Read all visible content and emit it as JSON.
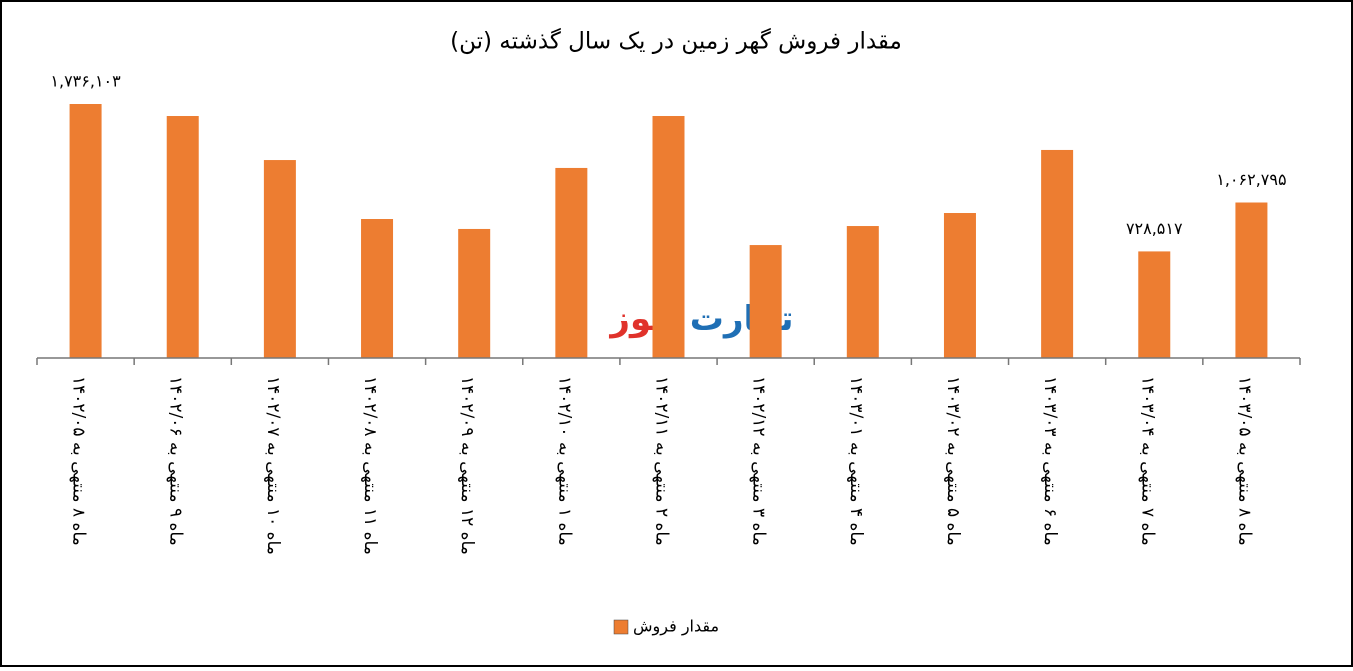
{
  "chart_data": {
    "type": "bar",
    "title": "مقدار فروش گهر زمین در یک سال گذشته (تن)",
    "categories": [
      "ماه ۸ منتهی به ۱۴۰۲/۰۵",
      "ماه ۹ منتهی به ۱۴۰۲/۰۶",
      "ماه ۱۰ منتهی به ۱۴۰۲/۰۷",
      "ماه ۱۱ منتهی به ۱۴۰۲/۰۸",
      "ماه ۱۲ منتهی به ۱۴۰۲/۰۹",
      "ماه ۱ منتهی به ۱۴۰۲/۱۰",
      "ماه ۲ منتهی به ۱۴۰۲/۱۱",
      "ماه ۳ منتهی به ۱۴۰۲/۱۲",
      "ماه ۴ منتهی به ۱۴۰۳/۰۱",
      "ماه ۵ منتهی به ۱۴۰۳/۰۲",
      "ماه ۶ منتهی به ۱۴۰۳/۰۳",
      "ماه ۷ منتهی به ۱۴۰۳/۰۴",
      "ماه ۸ منتهی به ۱۴۰۳/۰۵"
    ],
    "series": [
      {
        "name": "مقدار فروش",
        "color": "#ed7d31",
        "values": [
          1736103,
          1654000,
          1353000,
          950000,
          882000,
          1299000,
          1654000,
          772000,
          902000,
          991000,
          1422000,
          728517,
          1062795
        ],
        "value_labels": [
          "۱,۷۳۶,۱۰۳",
          null,
          null,
          null,
          null,
          null,
          null,
          null,
          null,
          null,
          null,
          "۷۲۸,۵۱۷",
          "۱,۰۶۲,۷۹۵"
        ]
      }
    ],
    "watermark": [
      "تجارت",
      "نیوز"
    ],
    "legend": "bottom"
  }
}
